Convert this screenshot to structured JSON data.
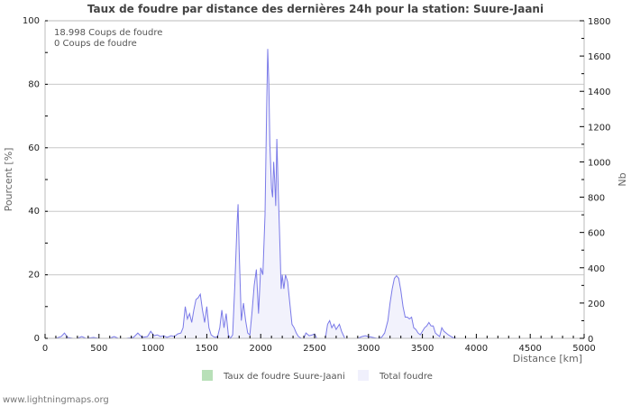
{
  "title": "Taux de foudre par distance des dernières 24h pour la station: Suure-Jaani",
  "info_lines": [
    "18.998  Coups de foudre",
    "0  Coups de foudre"
  ],
  "legend": [
    {
      "label": "Taux de foudre Suure-Jaani",
      "color": "#b8e0b8"
    },
    {
      "label": "Total foudre",
      "color": "#f0f0fc"
    }
  ],
  "footer": "www.lightningmaps.org",
  "colors": {
    "line": "#7a7ae8",
    "fill": "#f2f2fc",
    "grid": "#c8c8c8",
    "axis": "#bbbbbb"
  },
  "chart_data": {
    "type": "area",
    "title": "Taux de foudre par distance des dernières 24h pour la station: Suure-Jaani",
    "xlabel": "Distance   [km]",
    "ylabel_left": "Pourcent   [%]",
    "ylabel_right": "Nb",
    "xlim": [
      0,
      5000
    ],
    "ylim_left": [
      0,
      100
    ],
    "ylim_right": [
      0,
      1800
    ],
    "x_ticks": [
      0,
      500,
      1000,
      1500,
      2000,
      2500,
      3000,
      3500,
      4000,
      4500,
      5000
    ],
    "y_left_ticks": [
      0,
      20,
      40,
      60,
      80,
      100
    ],
    "y_right_ticks": [
      0,
      200,
      400,
      600,
      800,
      1000,
      1200,
      1400,
      1600,
      1800
    ],
    "grid": true,
    "legend_position": "bottom",
    "series": [
      {
        "name": "Taux de foudre Suure-Jaani",
        "axis": "left",
        "values_note": "0 everywhere (no visible line)",
        "points": []
      },
      {
        "name": "Total foudre",
        "axis": "right",
        "points": [
          [
            0,
            0
          ],
          [
            100,
            0
          ],
          [
            150,
            10
          ],
          [
            180,
            30
          ],
          [
            210,
            5
          ],
          [
            260,
            0
          ],
          [
            300,
            0
          ],
          [
            340,
            10
          ],
          [
            380,
            0
          ],
          [
            450,
            5
          ],
          [
            500,
            0
          ],
          [
            600,
            0
          ],
          [
            640,
            10
          ],
          [
            680,
            0
          ],
          [
            750,
            0
          ],
          [
            820,
            5
          ],
          [
            860,
            30
          ],
          [
            900,
            5
          ],
          [
            950,
            10
          ],
          [
            980,
            40
          ],
          [
            1010,
            15
          ],
          [
            1040,
            20
          ],
          [
            1070,
            10
          ],
          [
            1100,
            15
          ],
          [
            1130,
            5
          ],
          [
            1170,
            15
          ],
          [
            1200,
            10
          ],
          [
            1230,
            25
          ],
          [
            1260,
            30
          ],
          [
            1280,
            60
          ],
          [
            1300,
            180
          ],
          [
            1320,
            110
          ],
          [
            1340,
            140
          ],
          [
            1360,
            90
          ],
          [
            1380,
            160
          ],
          [
            1400,
            220
          ],
          [
            1420,
            230
          ],
          [
            1440,
            250
          ],
          [
            1460,
            160
          ],
          [
            1480,
            90
          ],
          [
            1500,
            180
          ],
          [
            1520,
            60
          ],
          [
            1540,
            20
          ],
          [
            1560,
            10
          ],
          [
            1580,
            5
          ],
          [
            1600,
            10
          ],
          [
            1620,
            60
          ],
          [
            1640,
            160
          ],
          [
            1660,
            60
          ],
          [
            1680,
            140
          ],
          [
            1700,
            20
          ],
          [
            1720,
            0
          ],
          [
            1740,
            20
          ],
          [
            1760,
            300
          ],
          [
            1780,
            640
          ],
          [
            1790,
            760
          ],
          [
            1800,
            500
          ],
          [
            1810,
            300
          ],
          [
            1820,
            100
          ],
          [
            1840,
            200
          ],
          [
            1860,
            100
          ],
          [
            1880,
            30
          ],
          [
            1900,
            20
          ],
          [
            1920,
            150
          ],
          [
            1940,
            300
          ],
          [
            1960,
            390
          ],
          [
            1980,
            140
          ],
          [
            2000,
            400
          ],
          [
            2020,
            360
          ],
          [
            2040,
            700
          ],
          [
            2055,
            1300
          ],
          [
            2065,
            1640
          ],
          [
            2075,
            1450
          ],
          [
            2085,
            1100
          ],
          [
            2100,
            850
          ],
          [
            2110,
            800
          ],
          [
            2120,
            1000
          ],
          [
            2130,
            900
          ],
          [
            2140,
            750
          ],
          [
            2150,
            1130
          ],
          [
            2165,
            800
          ],
          [
            2180,
            500
          ],
          [
            2190,
            280
          ],
          [
            2200,
            360
          ],
          [
            2215,
            280
          ],
          [
            2230,
            360
          ],
          [
            2250,
            320
          ],
          [
            2270,
            200
          ],
          [
            2290,
            80
          ],
          [
            2310,
            60
          ],
          [
            2330,
            30
          ],
          [
            2350,
            10
          ],
          [
            2380,
            0
          ],
          [
            2400,
            0
          ],
          [
            2420,
            30
          ],
          [
            2450,
            15
          ],
          [
            2480,
            20
          ],
          [
            2500,
            25
          ],
          [
            2520,
            0
          ],
          [
            2580,
            0
          ],
          [
            2600,
            0
          ],
          [
            2620,
            80
          ],
          [
            2640,
            100
          ],
          [
            2660,
            60
          ],
          [
            2680,
            80
          ],
          [
            2700,
            50
          ],
          [
            2730,
            80
          ],
          [
            2750,
            40
          ],
          [
            2780,
            0
          ],
          [
            2820,
            0
          ],
          [
            2850,
            0
          ],
          [
            2900,
            0
          ],
          [
            2940,
            10
          ],
          [
            2970,
            15
          ],
          [
            3000,
            10
          ],
          [
            3040,
            5
          ],
          [
            3080,
            0
          ],
          [
            3120,
            5
          ],
          [
            3150,
            30
          ],
          [
            3180,
            100
          ],
          [
            3200,
            200
          ],
          [
            3220,
            280
          ],
          [
            3240,
            340
          ],
          [
            3260,
            355
          ],
          [
            3280,
            340
          ],
          [
            3300,
            270
          ],
          [
            3320,
            180
          ],
          [
            3340,
            120
          ],
          [
            3360,
            120
          ],
          [
            3380,
            110
          ],
          [
            3400,
            120
          ],
          [
            3420,
            60
          ],
          [
            3440,
            50
          ],
          [
            3460,
            30
          ],
          [
            3480,
            20
          ],
          [
            3500,
            40
          ],
          [
            3520,
            60
          ],
          [
            3540,
            70
          ],
          [
            3560,
            90
          ],
          [
            3580,
            70
          ],
          [
            3600,
            70
          ],
          [
            3620,
            30
          ],
          [
            3640,
            20
          ],
          [
            3660,
            10
          ],
          [
            3680,
            60
          ],
          [
            3700,
            40
          ],
          [
            3740,
            20
          ],
          [
            3780,
            5
          ],
          [
            3820,
            0
          ],
          [
            5000,
            0
          ]
        ]
      }
    ]
  }
}
